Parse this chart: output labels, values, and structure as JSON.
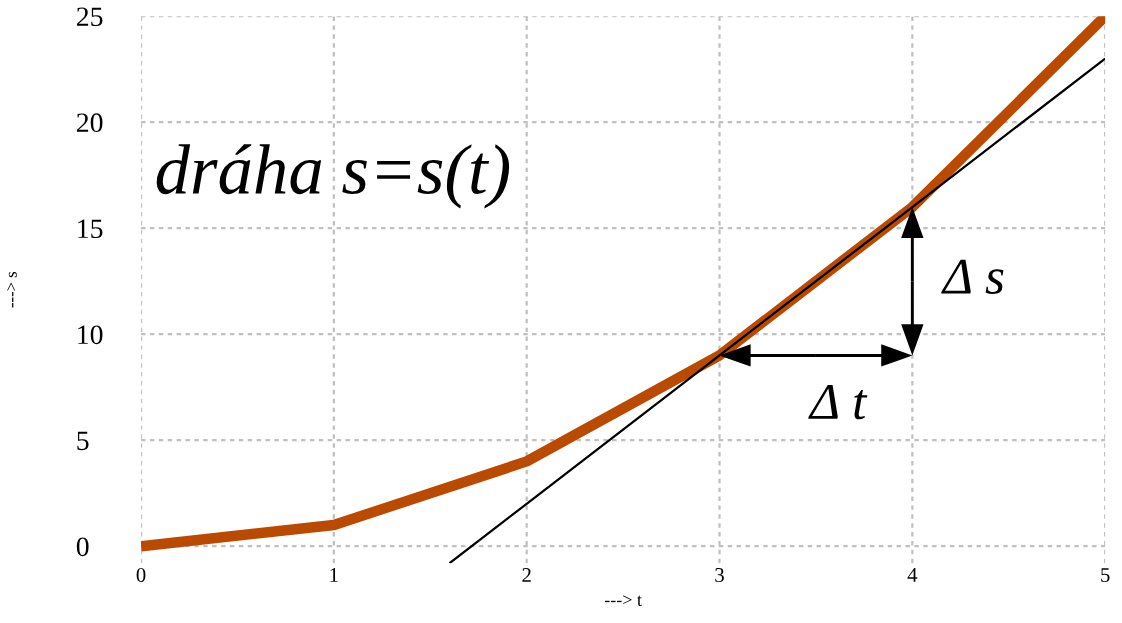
{
  "chart_data": {
    "type": "line",
    "x": [
      0,
      1,
      2,
      3,
      4,
      5
    ],
    "series": [
      {
        "color": "#b94a00",
        "values": [
          0,
          1,
          4,
          9,
          16,
          25
        ]
      },
      {
        "type": "line",
        "color": "#000000",
        "x": [
          1.6,
          3,
          4,
          5
        ],
        "values": [
          -0.8,
          9,
          16,
          23
        ]
      }
    ],
    "xlim": [
      0,
      5
    ],
    "ylim": [
      -0.8,
      25
    ],
    "xticks": [
      0,
      1,
      2,
      3,
      4,
      5
    ],
    "yticks": [
      0,
      5,
      10,
      15,
      20,
      25
    ],
    "xlabel": "---> t",
    "ylabel": "---> s",
    "grid": true,
    "annotations": [
      "dráha s=s(t)",
      {
        "text": "Δ t",
        "x": 3,
        "y": 9
      },
      {
        "text": "Δ s",
        "x": 4,
        "y": 16
      }
    ]
  }
}
